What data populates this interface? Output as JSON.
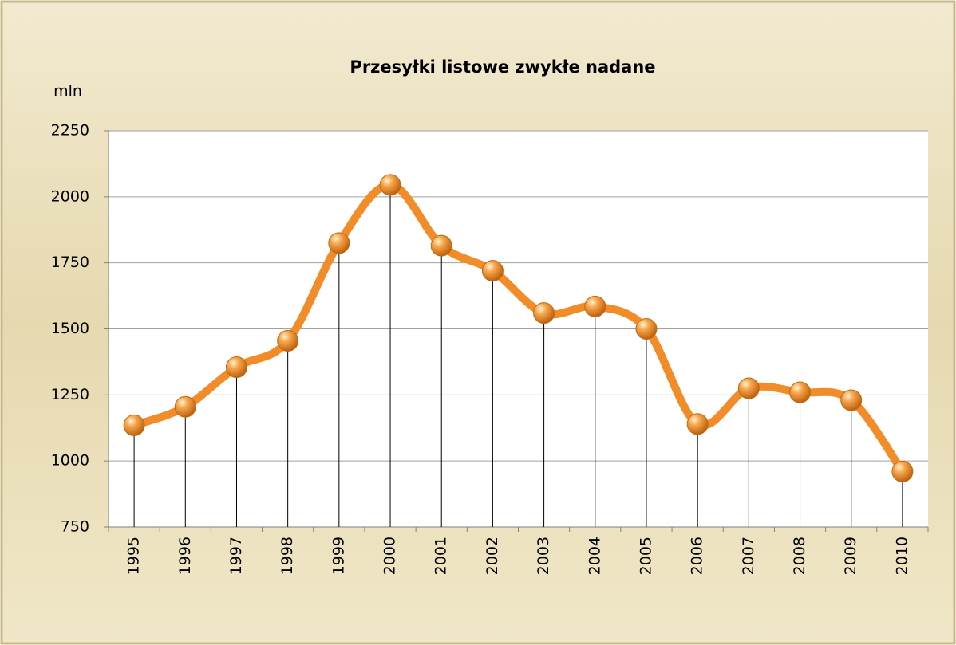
{
  "chart_data": {
    "type": "line",
    "title": "Przesyłki listowe zwykłe nadane",
    "y_label": "mln",
    "categories": [
      "1995",
      "1996",
      "1997",
      "1998",
      "1999",
      "2000",
      "2001",
      "2002",
      "2003",
      "2004",
      "2005",
      "2006",
      "2007",
      "2008",
      "2009",
      "2010"
    ],
    "series": [
      {
        "name": "Przesyłki listowe zwykłe nadane",
        "color": "#f28c28",
        "values": [
          1135,
          1205,
          1355,
          1455,
          1825,
          2045,
          1815,
          1720,
          1560,
          1585,
          1500,
          1140,
          1275,
          1260,
          1230,
          960
        ]
      }
    ],
    "ylim": [
      750,
      2250
    ],
    "yticks": [
      750,
      1000,
      1250,
      1500,
      1750,
      2000,
      2250
    ],
    "grid": true,
    "smooth": true,
    "drop_lines": true
  }
}
